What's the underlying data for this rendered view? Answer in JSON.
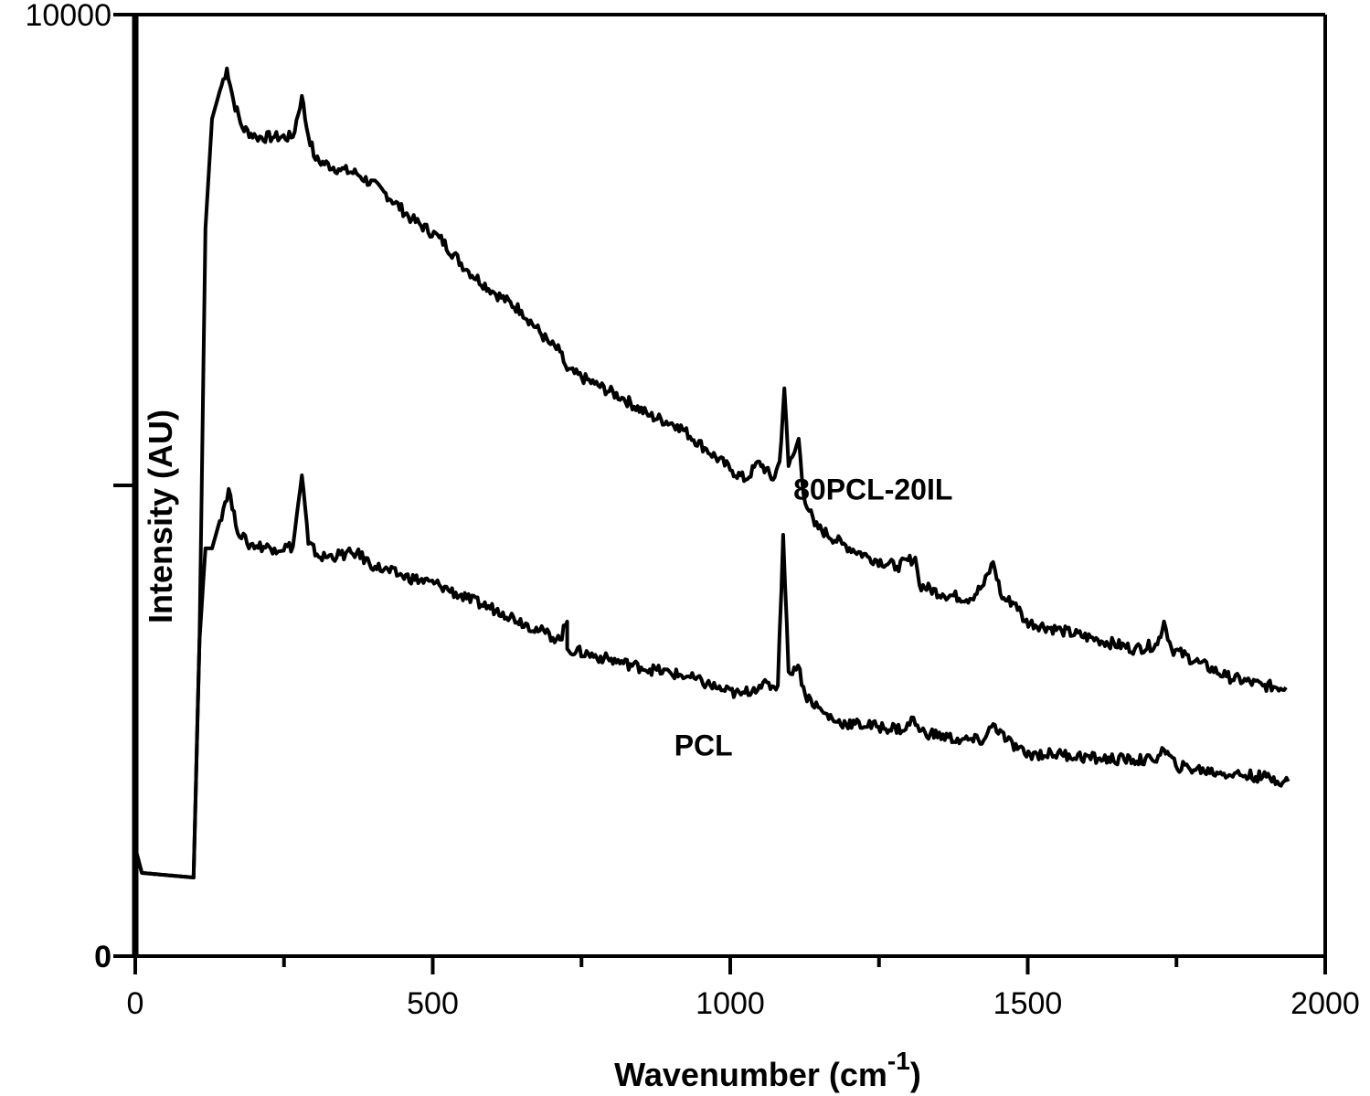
{
  "chart_data": {
    "type": "line",
    "title": "",
    "xlabel": "Wavenumber (cm",
    "xlabel_superscript": "-1",
    "xlabel_close": ")",
    "ylabel": "Intensity (AU)",
    "xlim": [
      0,
      2000
    ],
    "ylim": [
      0,
      10000
    ],
    "x_ticks": [
      0,
      500,
      1000,
      1500,
      2000
    ],
    "x_tick_labels": [
      "0",
      "500",
      "1000",
      "1500",
      "2000"
    ],
    "x_minor_ticks": [
      250,
      750,
      1250,
      1750
    ],
    "y_ticks": [
      0,
      5000,
      10000
    ],
    "y_tick_labels": [
      "0",
      "",
      "10000"
    ],
    "grid": false,
    "line_color": "#000000",
    "series": [
      {
        "name": "80PCL-20IL",
        "x": [
          2,
          11,
          98,
          108,
          118,
          129,
          142,
          154,
          165,
          180,
          203,
          234,
          265,
          280,
          288,
          303,
          342,
          372,
          418,
          465,
          511,
          557,
          603,
          649,
          695,
          714,
          726,
          772,
          818,
          865,
          911,
          957,
          1003,
          1026,
          1049,
          1072,
          1083,
          1091,
          1098,
          1108,
          1115,
          1123,
          1142,
          1188,
          1234,
          1280,
          1311,
          1318,
          1357,
          1403,
          1426,
          1442,
          1457,
          1480,
          1495,
          1557,
          1618,
          1680,
          1718,
          1729,
          1742,
          1788,
          1834,
          1895,
          1934
        ],
        "y": [
          1100,
          884,
          835,
          3360,
          7729,
          8894,
          9186,
          9428,
          9089,
          8797,
          8700,
          8700,
          8700,
          9137,
          8797,
          8457,
          8360,
          8312,
          8118,
          7826,
          7632,
          7292,
          7049,
          6855,
          6515,
          6418,
          6224,
          6078,
          5933,
          5739,
          5642,
          5399,
          5157,
          5060,
          5253,
          5060,
          5253,
          6030,
          5205,
          5350,
          5496,
          4913,
          4573,
          4379,
          4234,
          4137,
          4234,
          3942,
          3845,
          3797,
          3942,
          4185,
          3797,
          3748,
          3554,
          3457,
          3360,
          3263,
          3311,
          3554,
          3263,
          3117,
          2971,
          2874,
          2855
        ]
      },
      {
        "name": "PCL",
        "x": [
          2,
          11,
          98,
          108,
          118,
          129,
          142,
          157,
          169,
          188,
          234,
          265,
          280,
          291,
          311,
          372,
          403,
          449,
          511,
          557,
          618,
          680,
          714,
          726,
          726,
          788,
          850,
          927,
          988,
          1018,
          1049,
          1080,
          1089,
          1098,
          1114,
          1126,
          1157,
          1180,
          1249,
          1295,
          1308,
          1318,
          1388,
          1426,
          1442,
          1465,
          1495,
          1557,
          1618,
          1710,
          1729,
          1749,
          1818,
          1895,
          1938
        ],
        "y": [
          1100,
          884,
          835,
          3360,
          4331,
          4331,
          4622,
          4962,
          4573,
          4379,
          4331,
          4350,
          5107,
          4379,
          4234,
          4282,
          4137,
          4039,
          3942,
          3797,
          3651,
          3457,
          3360,
          3554,
          3263,
          3165,
          3068,
          2971,
          2826,
          2777,
          2874,
          2874,
          4476,
          3020,
          3088,
          2777,
          2583,
          2486,
          2437,
          2408,
          2534,
          2389,
          2292,
          2292,
          2466,
          2292,
          2146,
          2146,
          2097,
          2078,
          2194,
          2020,
          1952,
          1903,
          1855
        ]
      }
    ],
    "annotations": [
      {
        "text": "80PCL-20IL",
        "x": 1240,
        "y": 4850
      },
      {
        "text": "PCL",
        "x": 955,
        "y": 2130
      }
    ]
  }
}
